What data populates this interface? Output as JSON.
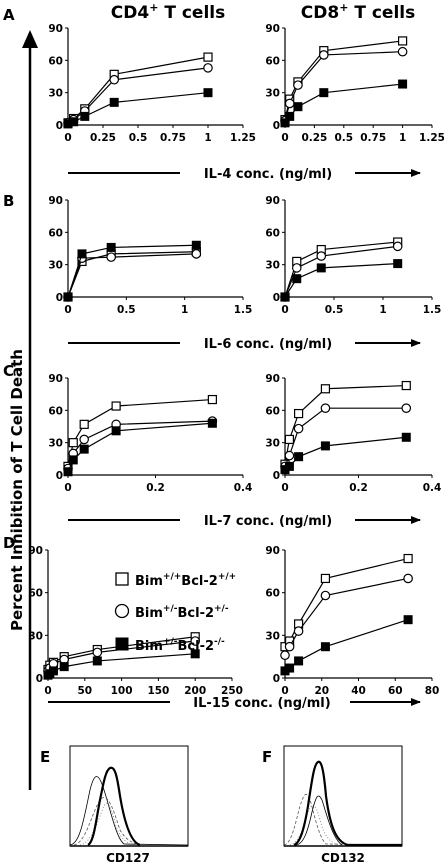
{
  "figure": {
    "col_titles": [
      {
        "main": "CD4",
        "sup": "+",
        "rest": " T cells"
      },
      {
        "main": "CD8",
        "sup": "+",
        "rest": " T cells"
      }
    ],
    "y_axis_title": "Percent Inhibition of T Cell Death",
    "legend": [
      {
        "marker": "open-square",
        "text": "Bim",
        "sup1": "+/+",
        "text2": "Bcl-2",
        "sup2": "+/+"
      },
      {
        "marker": "open-circle",
        "text": "Bim",
        "sup1": "+/-",
        "text2": "Bcl-2",
        "sup2": "+/-"
      },
      {
        "marker": "filled-square",
        "text": "Bim",
        "sup1": "+/-",
        "text2": "Bcl-2",
        "sup2": "-/-"
      }
    ],
    "histograms": [
      {
        "letter": "E",
        "xlabel": "CD127"
      },
      {
        "letter": "F",
        "xlabel": "CD132"
      }
    ]
  },
  "chart_data": [
    {
      "type": "line",
      "panel": "A",
      "title": "CD4+ T cells",
      "xlabel": "IL-4 conc. (ng/ml)",
      "ylabel": "Percent Inhibition of T Cell Death",
      "xlim": [
        0,
        1.25
      ],
      "ylim": [
        0,
        90
      ],
      "xticks": [
        "0",
        "0.25",
        "0.5",
        "0.75",
        "1",
        "1.25"
      ],
      "yticks": [
        "0",
        "30",
        "60",
        "90"
      ],
      "series": [
        {
          "marker": "open-square",
          "x": [
            0,
            0.04,
            0.12,
            0.33,
            1
          ],
          "y": [
            2,
            6,
            15,
            47,
            63
          ]
        },
        {
          "marker": "open-circle",
          "x": [
            0,
            0.04,
            0.12,
            0.33,
            1
          ],
          "y": [
            2,
            5,
            13,
            42,
            53
          ]
        },
        {
          "marker": "filled-square",
          "x": [
            0,
            0.04,
            0.12,
            0.33,
            1
          ],
          "y": [
            1,
            3,
            8,
            21,
            30
          ]
        }
      ]
    },
    {
      "type": "line",
      "panel": "A",
      "title": "CD8+ T cells",
      "xlabel": "IL-4 conc. (ng/ml)",
      "xlim": [
        0,
        1.25
      ],
      "ylim": [
        0,
        90
      ],
      "xticks": [
        "0",
        "0.25",
        "0.5",
        "0.75",
        "1",
        "1.25"
      ],
      "yticks": [
        "0",
        "30",
        "60",
        "90"
      ],
      "series": [
        {
          "marker": "open-square",
          "x": [
            0,
            0.04,
            0.11,
            0.33,
            1
          ],
          "y": [
            5,
            24,
            40,
            69,
            78
          ]
        },
        {
          "marker": "open-circle",
          "x": [
            0,
            0.04,
            0.11,
            0.33,
            1
          ],
          "y": [
            4,
            20,
            37,
            65,
            68
          ]
        },
        {
          "marker": "filled-square",
          "x": [
            0,
            0.04,
            0.11,
            0.33,
            1
          ],
          "y": [
            2,
            8,
            17,
            30,
            38
          ]
        }
      ]
    },
    {
      "type": "line",
      "panel": "B",
      "xlabel": "IL-6 conc. (ng/ml)",
      "xlim": [
        0,
        1.5
      ],
      "ylim": [
        0,
        90
      ],
      "xticks": [
        "0",
        "0.5",
        "1",
        "1.5"
      ],
      "yticks": [
        "0",
        "30",
        "60",
        "90"
      ],
      "series": [
        {
          "marker": "open-square",
          "x": [
            0,
            0.12,
            0.37,
            1.1
          ],
          "y": [
            0,
            33,
            40,
            42
          ]
        },
        {
          "marker": "open-circle",
          "x": [
            0,
            0.12,
            0.37,
            1.1
          ],
          "y": [
            0,
            36,
            37,
            40
          ]
        },
        {
          "marker": "filled-square",
          "x": [
            0,
            0.12,
            0.37,
            1.1
          ],
          "y": [
            0,
            40,
            46,
            48
          ]
        }
      ]
    },
    {
      "type": "line",
      "panel": "B",
      "xlabel": "IL-6 conc. (ng/ml)",
      "xlim": [
        0,
        1.5
      ],
      "ylim": [
        0,
        90
      ],
      "xticks": [
        "0",
        "0.5",
        "1",
        "1.5"
      ],
      "yticks": [
        "0",
        "30",
        "60",
        "90"
      ],
      "series": [
        {
          "marker": "open-square",
          "x": [
            0,
            0.12,
            0.37,
            1.15
          ],
          "y": [
            0,
            33,
            44,
            51
          ]
        },
        {
          "marker": "open-circle",
          "x": [
            0,
            0.12,
            0.37,
            1.15
          ],
          "y": [
            0,
            27,
            38,
            47
          ]
        },
        {
          "marker": "filled-square",
          "x": [
            0,
            0.12,
            0.37,
            1.15
          ],
          "y": [
            0,
            17,
            27,
            31
          ]
        }
      ]
    },
    {
      "type": "line",
      "panel": "C",
      "xlabel": "IL-7 conc. (ng/ml)",
      "xlim": [
        0,
        0.4
      ],
      "ylim": [
        0,
        90
      ],
      "xticks": [
        "0",
        "0.2",
        "0.4"
      ],
      "yticks": [
        "0",
        "30",
        "60",
        "90"
      ],
      "series": [
        {
          "marker": "open-square",
          "x": [
            0,
            0.012,
            0.037,
            0.11,
            0.33
          ],
          "y": [
            8,
            30,
            47,
            64,
            70
          ]
        },
        {
          "marker": "open-circle",
          "x": [
            0,
            0.012,
            0.037,
            0.11,
            0.33
          ],
          "y": [
            6,
            20,
            33,
            47,
            50
          ]
        },
        {
          "marker": "filled-square",
          "x": [
            0,
            0.012,
            0.037,
            0.11,
            0.33
          ],
          "y": [
            3,
            14,
            24,
            41,
            48
          ]
        }
      ]
    },
    {
      "type": "line",
      "panel": "C",
      "xlabel": "IL-7 conc. (ng/ml)",
      "xlim": [
        0,
        0.4
      ],
      "ylim": [
        0,
        90
      ],
      "xticks": [
        "0",
        "0.2",
        "0.4"
      ],
      "yticks": [
        "0",
        "30",
        "60",
        "90"
      ],
      "series": [
        {
          "marker": "open-square",
          "x": [
            0,
            0.012,
            0.037,
            0.11,
            0.33
          ],
          "y": [
            10,
            33,
            57,
            80,
            83
          ]
        },
        {
          "marker": "open-circle",
          "x": [
            0,
            0.012,
            0.037,
            0.11,
            0.33
          ],
          "y": [
            8,
            18,
            43,
            62,
            62
          ]
        },
        {
          "marker": "filled-square",
          "x": [
            0,
            0.012,
            0.037,
            0.11,
            0.33
          ],
          "y": [
            5,
            8,
            17,
            27,
            35
          ]
        }
      ]
    },
    {
      "type": "line",
      "panel": "D",
      "xlabel": "IL-15 conc. (ng/ml)",
      "xlim": [
        0,
        250
      ],
      "ylim": [
        0,
        90
      ],
      "xticks": [
        "0",
        "50",
        "100",
        "150",
        "200",
        "250"
      ],
      "yticks": [
        "0",
        "30",
        "60",
        "90"
      ],
      "series": [
        {
          "marker": "open-square",
          "x": [
            0,
            2.5,
            7.4,
            22,
            67,
            200
          ],
          "y": [
            6,
            9,
            11,
            15,
            20,
            29
          ]
        },
        {
          "marker": "open-circle",
          "x": [
            0,
            2.5,
            7.4,
            22,
            67,
            200
          ],
          "y": [
            5,
            7,
            10,
            13,
            18,
            26
          ]
        },
        {
          "marker": "filled-square",
          "x": [
            0,
            2.5,
            7.4,
            22,
            67,
            200
          ],
          "y": [
            2,
            3,
            5,
            8,
            12,
            17
          ]
        }
      ]
    },
    {
      "type": "line",
      "panel": "D",
      "xlabel": "IL-15 conc. (ng/ml)",
      "xlim": [
        0,
        80
      ],
      "ylim": [
        0,
        90
      ],
      "xticks": [
        "0",
        "20",
        "40",
        "60",
        "80"
      ],
      "yticks": [
        "0",
        "30",
        "60",
        "90"
      ],
      "series": [
        {
          "marker": "open-square",
          "x": [
            0,
            2.5,
            7.4,
            22,
            67
          ],
          "y": [
            22,
            26,
            38,
            70,
            84
          ]
        },
        {
          "marker": "open-circle",
          "x": [
            0,
            2.5,
            7.4,
            22,
            67
          ],
          "y": [
            16,
            22,
            33,
            58,
            70
          ]
        },
        {
          "marker": "filled-square",
          "x": [
            0,
            2.5,
            7.4,
            22,
            67
          ],
          "y": [
            5,
            7,
            12,
            22,
            41
          ]
        }
      ]
    }
  ]
}
